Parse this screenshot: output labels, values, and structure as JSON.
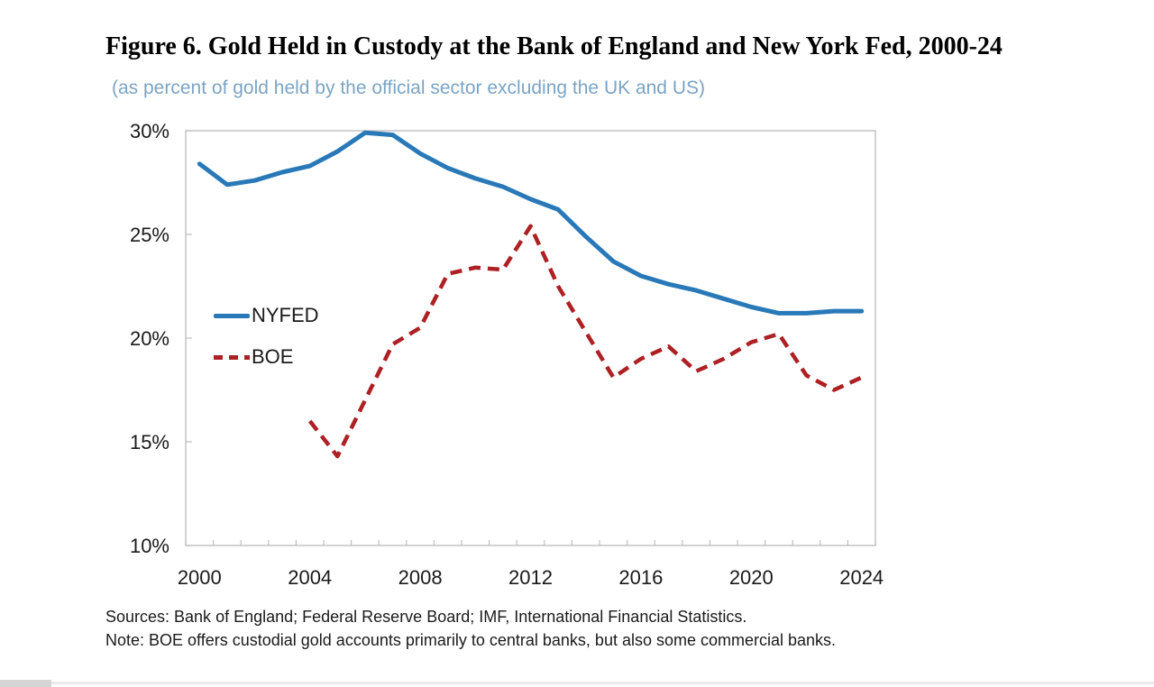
{
  "figure": {
    "title": "Figure 6. Gold Held in Custody at the Bank of England and New York Fed, 2000-24",
    "subtitle": "(as percent of gold held by the official sector excluding the UK and US)",
    "sources": "Sources: Bank of England; Federal Reserve Board; IMF, International Financial Statistics.",
    "note": "Note: BOE offers custodial gold accounts primarily to central banks, but also some commercial banks."
  },
  "colors": {
    "nyfed": "#2979B8",
    "boe": "#AD2024",
    "axis": "#BFBFBF",
    "tick_text": "#1A1A1A",
    "subtitle_text": "#7BA4C4"
  },
  "chart_data": {
    "type": "line",
    "title": "Gold Held in Custody at the Bank of England and New York Fed, 2000-24",
    "xlabel": "",
    "ylabel": "percent of gold held by the official sector excluding the UK and US",
    "x": [
      2000,
      2001,
      2002,
      2003,
      2004,
      2005,
      2006,
      2007,
      2008,
      2009,
      2010,
      2011,
      2012,
      2013,
      2014,
      2015,
      2016,
      2017,
      2018,
      2019,
      2020,
      2021,
      2022,
      2023,
      2024
    ],
    "series": [
      {
        "name": "NYFED",
        "style": "solid",
        "color_key": "nyfed",
        "values": [
          28.4,
          27.4,
          27.6,
          28.0,
          28.3,
          29.0,
          29.9,
          29.8,
          28.9,
          28.2,
          27.7,
          27.3,
          26.7,
          26.2,
          24.9,
          23.7,
          23.0,
          22.6,
          22.3,
          21.9,
          21.5,
          21.2,
          21.2,
          21.3,
          21.3
        ]
      },
      {
        "name": "BOE",
        "style": "dashed",
        "color_key": "boe",
        "values": [
          null,
          null,
          null,
          null,
          16.0,
          14.3,
          17.0,
          19.7,
          20.5,
          23.1,
          23.4,
          23.3,
          25.4,
          22.5,
          20.3,
          18.1,
          19.0,
          19.6,
          18.4,
          19.0,
          19.8,
          20.2,
          18.2,
          17.5,
          18.1
        ]
      }
    ],
    "ylim": [
      10,
      30
    ],
    "y_ticks": [
      {
        "value": 30,
        "label": "30%"
      },
      {
        "value": 25,
        "label": "25%"
      },
      {
        "value": 20,
        "label": "20%"
      },
      {
        "value": 15,
        "label": "15%"
      },
      {
        "value": 10,
        "label": "10%"
      }
    ],
    "x_tick_years": [
      2000,
      2004,
      2008,
      2012,
      2016,
      2020,
      2024
    ],
    "grid": false,
    "legend_position": "inside-left"
  }
}
